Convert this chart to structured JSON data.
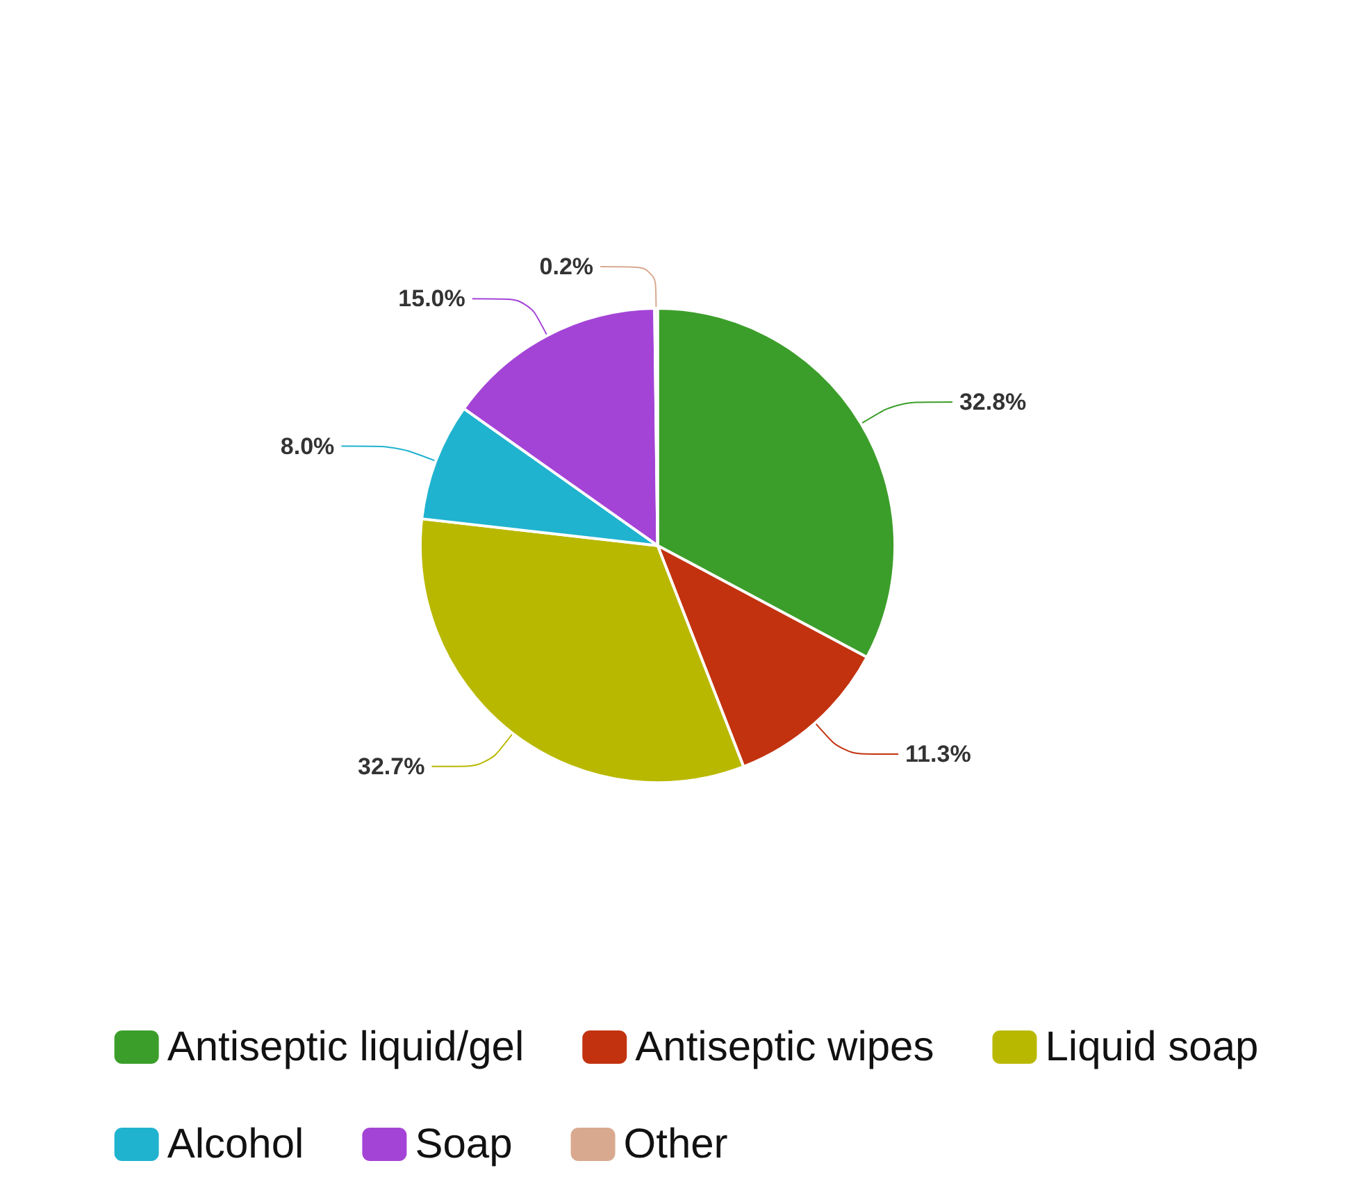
{
  "chart_data": {
    "type": "pie",
    "categories": [
      "Antiseptic liquid/gel",
      "Antiseptic wipes",
      "Liquid soap",
      "Alcohol",
      "Soap",
      "Other"
    ],
    "values": [
      32.8,
      11.3,
      32.7,
      8.0,
      15.0,
      0.2
    ],
    "value_labels": [
      "32.8%",
      "11.3%",
      "32.7%",
      "8.0%",
      "15.0%",
      "0.2%"
    ],
    "colors": [
      "#3c9e2a",
      "#c2320f",
      "#b9b800",
      "#1fb3cf",
      "#a444d6",
      "#d9a98f"
    ],
    "legend": "bottom"
  }
}
